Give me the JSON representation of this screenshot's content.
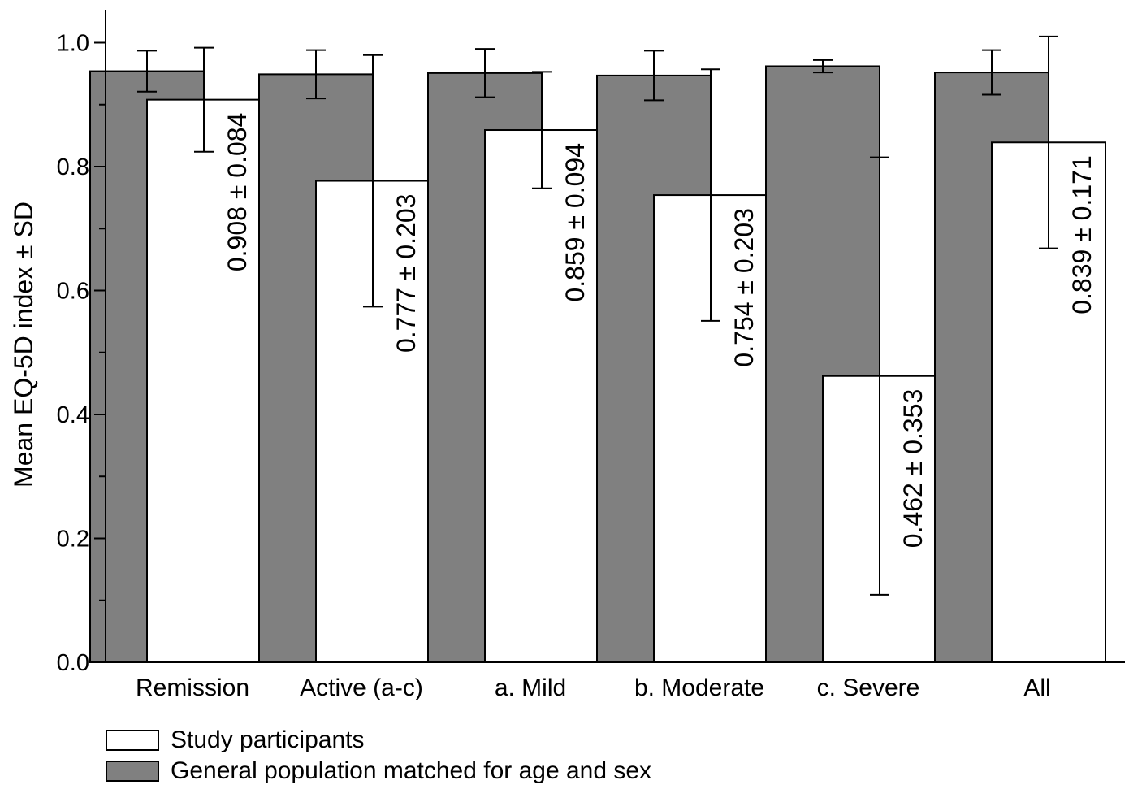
{
  "chart_data": {
    "type": "bar",
    "title": "",
    "xlabel": "",
    "ylabel": "Mean EQ-5D index ± SD",
    "ylim": [
      0,
      1.05
    ],
    "yticks": [
      0.0,
      0.2,
      0.4,
      0.6,
      0.8,
      1.0
    ],
    "ytick_labels": [
      "0.0",
      "0.2",
      "0.4",
      "0.6",
      "0.8",
      "1.0"
    ],
    "categories": [
      "Remission",
      "Active (a-c)",
      "a. Mild",
      "b. Moderate",
      "c. Severe",
      "All"
    ],
    "series": [
      {
        "name": "General population matched for age and sex",
        "color": "#808080",
        "values": [
          0.954,
          0.949,
          0.951,
          0.947,
          0.962,
          0.952
        ],
        "sd": [
          0.033,
          0.039,
          0.039,
          0.04,
          0.01,
          0.036
        ]
      },
      {
        "name": "Study participants",
        "color": "#ffffff",
        "values": [
          0.908,
          0.777,
          0.859,
          0.754,
          0.462,
          0.839
        ],
        "sd": [
          0.084,
          0.203,
          0.094,
          0.203,
          0.353,
          0.171
        ],
        "data_labels": [
          "0.908 ± 0.084",
          "0.777 ± 0.203",
          "0.859 ± 0.094",
          "0.754 ± 0.203",
          "0.462 ± 0.353",
          "0.839 ± 0.171"
        ]
      }
    ],
    "grid": false,
    "legend_position": "bottom-left"
  },
  "legend": {
    "participants_label": "Study participants",
    "population_label": "General population matched for age and sex"
  }
}
